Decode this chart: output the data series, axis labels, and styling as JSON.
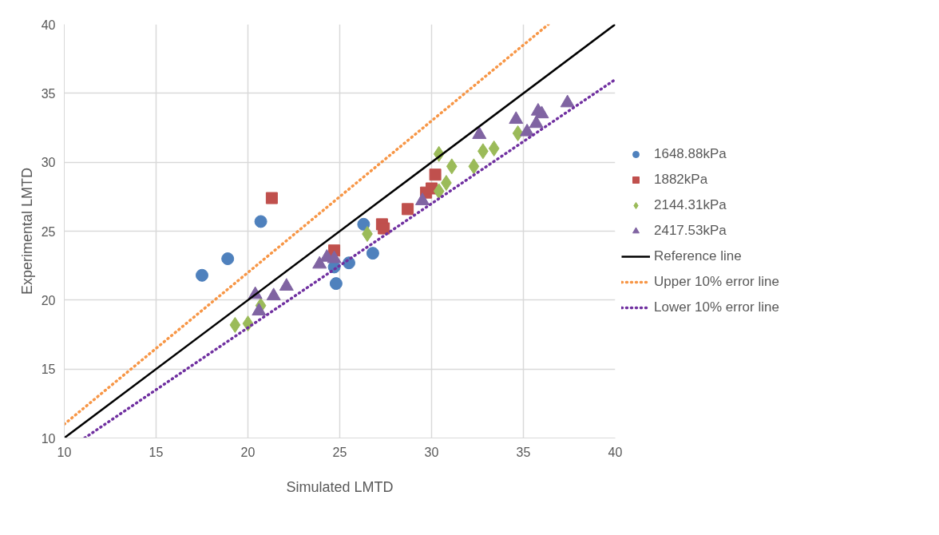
{
  "chart_data": {
    "type": "scatter",
    "xlabel": "Simulated LMTD",
    "ylabel": "Experimental LMTD",
    "xlim": [
      10,
      40
    ],
    "ylim": [
      10,
      40
    ],
    "xticks": [
      10,
      15,
      20,
      25,
      30,
      35,
      40
    ],
    "yticks": [
      10,
      15,
      20,
      25,
      30,
      35,
      40
    ],
    "grid": true,
    "legend": "right",
    "series": [
      {
        "name": "1648.88kPa",
        "color": "#4f81bd",
        "marker": "circle",
        "x": [
          17.5,
          18.9,
          20.7,
          26.3,
          25.5,
          24.7,
          24.8,
          26.8
        ],
        "values": [
          21.8,
          23.0,
          25.7,
          25.5,
          22.7,
          22.4,
          21.2,
          23.4
        ]
      },
      {
        "name": "1882kPa",
        "color": "#c0504d",
        "marker": "square",
        "x": [
          21.3,
          24.7,
          27.3,
          27.4,
          28.7,
          29.7,
          30.0,
          30.2
        ],
        "values": [
          27.4,
          23.6,
          25.5,
          25.2,
          26.6,
          27.8,
          28.1,
          29.1
        ]
      },
      {
        "name": "2144.31kPa",
        "color": "#9bbb59",
        "marker": "diamond",
        "x": [
          19.3,
          20.0,
          20.7,
          26.5,
          30.4,
          31.1,
          30.8,
          30.4,
          32.3,
          32.8,
          33.4,
          34.7
        ],
        "values": [
          18.2,
          18.3,
          19.6,
          24.8,
          30.6,
          29.7,
          28.5,
          27.9,
          29.7,
          30.8,
          31.0,
          32.1
        ]
      },
      {
        "name": "2417.53kPa",
        "color": "#8064a2",
        "marker": "triangle",
        "x": [
          20.4,
          20.6,
          21.4,
          22.1,
          23.9,
          24.3,
          24.7,
          29.5,
          32.6,
          34.6,
          35.2,
          35.7,
          35.8,
          36.0,
          37.4
        ],
        "values": [
          20.4,
          19.2,
          20.3,
          21.0,
          22.6,
          23.1,
          23.0,
          27.2,
          32.0,
          33.1,
          32.2,
          32.8,
          33.7,
          33.5,
          34.3
        ]
      },
      {
        "name": "Reference line",
        "type": "line",
        "color": "#000000",
        "line_style": "solid",
        "x": [
          10,
          40
        ],
        "values": [
          10,
          40
        ]
      },
      {
        "name": "Upper 10% error line",
        "type": "line",
        "color": "#f79646",
        "line_style": "dotted",
        "x": [
          10,
          36.36
        ],
        "values": [
          11,
          40
        ]
      },
      {
        "name": "Lower 10% error line",
        "type": "line",
        "color": "#7030a0",
        "line_style": "dotted",
        "x": [
          11.11,
          40
        ],
        "values": [
          10,
          36
        ]
      }
    ]
  }
}
